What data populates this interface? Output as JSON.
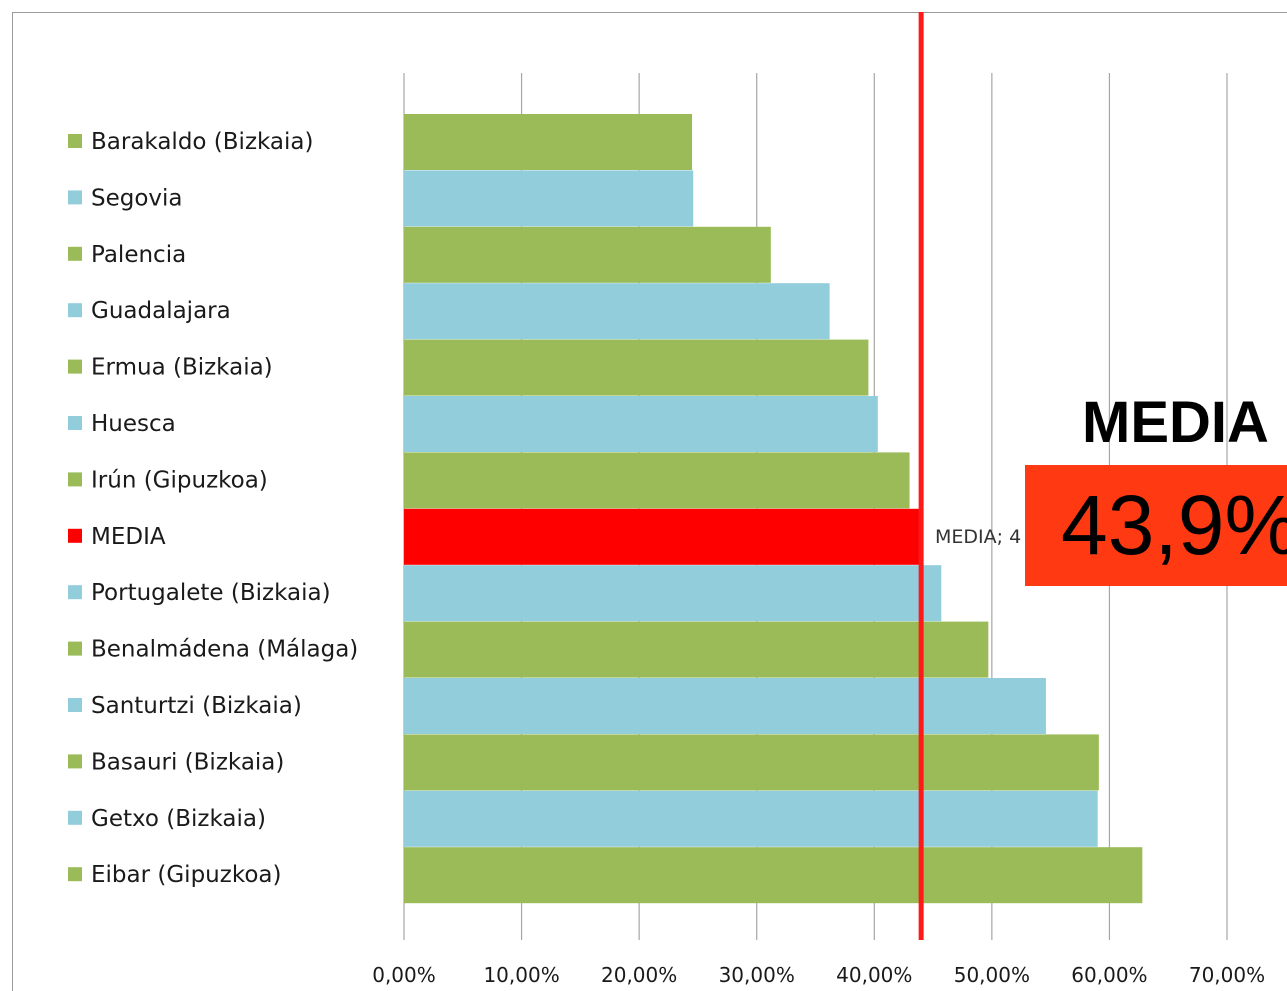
{
  "colors": {
    "green": "#9bbb59",
    "blue": "#92cddc",
    "media": "#ff0000",
    "average_line": "#ff1a1a",
    "callout_box": "#ff3a12",
    "grid": "#a6a6a6"
  },
  "chart_data": {
    "type": "bar",
    "orientation": "horizontal",
    "title": "",
    "xlabel": "",
    "ylabel": "",
    "xlim": [
      0,
      70
    ],
    "x_ticks": [
      "0,00%",
      "10,00%",
      "20,00%",
      "30,00%",
      "40,00%",
      "50,00%",
      "60,00%",
      "70,00%"
    ],
    "grid": true,
    "legend": "left",
    "categories": [
      "Barakaldo (Bizkaia)",
      "Segovia",
      "Palencia",
      "Guadalajara",
      "Ermua (Bizkaia)",
      "Huesca",
      "Irún (Gipuzkoa)",
      "MEDIA",
      "Portugalete (Bizkaia)",
      "Benalmádena (Málaga)",
      "Santurtzi (Bizkaia)",
      "Basauri (Bizkaia)",
      "Getxo (Bizkaia)",
      "Eibar (Gipuzkoa)"
    ],
    "values": [
      24.5,
      24.6,
      31.2,
      36.2,
      39.5,
      40.3,
      43.0,
      43.9,
      45.7,
      49.7,
      54.6,
      59.1,
      59.0,
      62.8
    ],
    "bar_colors": [
      "green",
      "blue",
      "green",
      "blue",
      "green",
      "blue",
      "green",
      "media",
      "blue",
      "green",
      "blue",
      "green",
      "blue",
      "green"
    ],
    "average_line_value": 43.9,
    "inline_label": "MEDIA; 4",
    "callout": {
      "title": "MEDIA",
      "value": "43,9%"
    }
  }
}
